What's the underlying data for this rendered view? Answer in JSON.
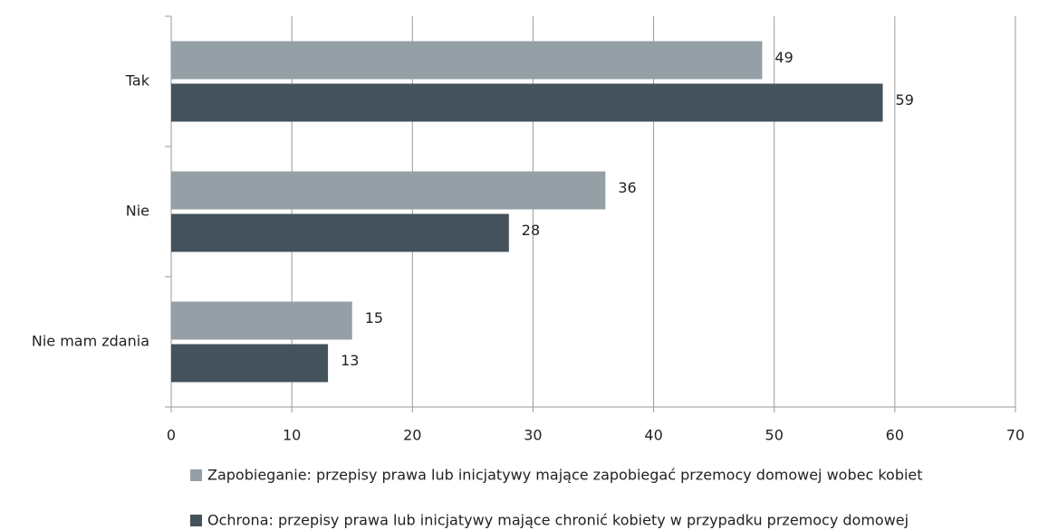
{
  "chart_data": {
    "type": "bar",
    "orientation": "horizontal",
    "categories": [
      "Tak",
      "Nie",
      "Nie mam zdania"
    ],
    "series": [
      {
        "name": "Zapobieganie: przepisy prawa lub inicjatywy mające zapobiegać przemocy domowej wobec kobiet",
        "color": "#959fa6",
        "values": [
          49,
          36,
          15
        ]
      },
      {
        "name": "Ochrona: przepisy prawa lub inicjatywy mające chronić kobiety w przypadku przemocy domowej",
        "color": "#44525c",
        "values": [
          59,
          28,
          13
        ]
      }
    ],
    "xlim": [
      0,
      70
    ],
    "xticks": [
      0,
      10,
      20,
      30,
      40,
      50,
      60,
      70
    ],
    "grid": true,
    "legend": "bottom"
  }
}
